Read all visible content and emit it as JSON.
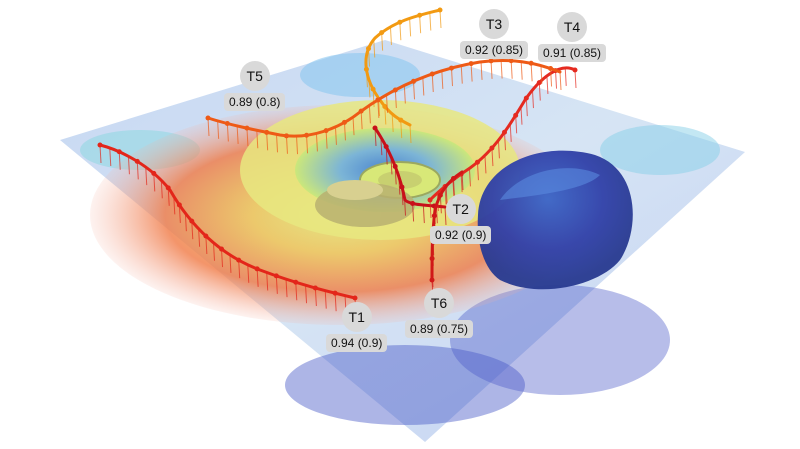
{
  "trajectories": [
    {
      "id": "t1",
      "name": "T1",
      "score": "0.94 (0.9)",
      "color": "#e3261a"
    },
    {
      "id": "t2",
      "name": "T2",
      "score": "0.92 (0.9)",
      "color": "#c8101a"
    },
    {
      "id": "t3",
      "name": "T3",
      "score": "0.92 (0.85)",
      "color": "#f29a12"
    },
    {
      "id": "t4",
      "name": "T4",
      "score": "0.91 (0.85)",
      "color": "#e52a20"
    },
    {
      "id": "t5",
      "name": "T5",
      "score": "0.89 (0.8)",
      "color": "#ee5a16"
    },
    {
      "id": "t6",
      "name": "T6",
      "score": "0.89 (0.75)",
      "color": "#d01818"
    }
  ],
  "colors": {
    "terrain_low": "#3848c8",
    "terrain_mid": "#9fe07a",
    "terrain_high": "#f05030",
    "label_bg": "#d9d9d9"
  }
}
